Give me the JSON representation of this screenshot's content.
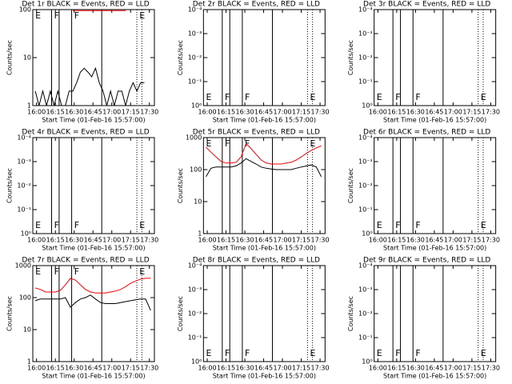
{
  "chart_data": [
    {
      "type": "line",
      "title": "Det 1r BLACK = Events, RED = LLD",
      "xlabel": "Start Time (01-Feb-16 15:57:00)",
      "ylabel": "Counts/sec",
      "x": [
        2,
        5,
        8,
        11,
        14,
        17,
        20,
        23,
        26,
        29,
        32,
        35,
        38,
        41,
        44,
        47,
        50,
        53,
        56,
        59,
        62,
        65,
        68,
        71,
        74,
        77,
        80,
        83,
        86,
        89
      ],
      "series": [
        {
          "color": "#000000",
          "values": [
            2,
            1,
            2,
            1,
            2,
            1,
            2,
            1,
            1,
            2,
            2,
            3,
            5,
            6,
            5,
            4,
            6,
            3,
            2,
            1,
            2,
            1,
            2,
            2,
            1,
            2,
            3,
            2,
            3,
            3
          ]
        },
        {
          "color": "#ff0000",
          "values": [
            null,
            null,
            null,
            null,
            null,
            null,
            null,
            null,
            null,
            null,
            95,
            95,
            95,
            95,
            95,
            95,
            95,
            95,
            95,
            95,
            95,
            95,
            95,
            95,
            95,
            null,
            null,
            null,
            null,
            null
          ]
        }
      ],
      "xlim": [
        0,
        97
      ],
      "xticks": [
        {
          "value": 3,
          "label": "16:00"
        },
        {
          "value": 18,
          "label": "16:15"
        },
        {
          "value": 33,
          "label": "16:30"
        },
        {
          "value": 48,
          "label": "16:45"
        },
        {
          "value": 63,
          "label": "17:00"
        },
        {
          "value": 78,
          "label": "17:15"
        },
        {
          "value": 93,
          "label": "17:30"
        }
      ],
      "ylim": [
        1,
        100
      ],
      "yticks": [
        1,
        10,
        100
      ],
      "log_y": true,
      "vlines": {
        "solid": [
          15,
          21,
          31,
          55
        ],
        "dotted": [
          83,
          87
        ]
      },
      "annotations": [
        {
          "text": "E",
          "x": 2
        },
        {
          "text": "F",
          "x": 17
        },
        {
          "text": "F",
          "x": 33
        },
        {
          "text": "E",
          "x": 85
        }
      ],
      "annotation_position": "top"
    },
    {
      "type": "line",
      "title": "Det 2r BLACK = Events, RED = LLD",
      "xlabel": "Start Time (01-Feb-16 15:57:00)",
      "ylabel": "Counts/sec",
      "series": [],
      "xlim": [
        0,
        97
      ],
      "xticks": [
        {
          "value": 3,
          "label": "16:00"
        },
        {
          "value": 18,
          "label": "16:15"
        },
        {
          "value": 33,
          "label": "16:30"
        },
        {
          "value": 48,
          "label": "16:45"
        },
        {
          "value": 63,
          "label": "17:00"
        },
        {
          "value": 78,
          "label": "17:15"
        },
        {
          "value": 93,
          "label": "17:30"
        }
      ],
      "ylim": [
        1,
        0.0001
      ],
      "yticks": [
        {
          "value": 1,
          "label": "10⁰"
        },
        {
          "value": 0.1,
          "label": "10⁻¹"
        },
        {
          "value": 0.01,
          "label": "10⁻²"
        },
        {
          "value": 0.001,
          "label": "10⁻³"
        },
        {
          "value": 0.0001,
          "label": "10⁻⁴"
        }
      ],
      "log_y": true,
      "vlines": {
        "solid": [
          15,
          21,
          31,
          55
        ],
        "dotted": [
          83,
          87
        ]
      },
      "annotations": [
        {
          "text": "E",
          "x": 2
        },
        {
          "text": "F",
          "x": 17
        },
        {
          "text": "F",
          "x": 33
        },
        {
          "text": "E",
          "x": 85
        }
      ],
      "annotation_position": "bottom"
    },
    {
      "type": "line",
      "title": "Det 3r BLACK = Events, RED = LLD",
      "xlabel": "Start Time (01-Feb-16 15:57:00)",
      "ylabel": "Counts/sec",
      "series": [],
      "xlim": [
        0,
        97
      ],
      "xticks": [
        {
          "value": 3,
          "label": "16:00"
        },
        {
          "value": 18,
          "label": "16:15"
        },
        {
          "value": 33,
          "label": "16:30"
        },
        {
          "value": 48,
          "label": "16:45"
        },
        {
          "value": 63,
          "label": "17:00"
        },
        {
          "value": 78,
          "label": "17:15"
        },
        {
          "value": 93,
          "label": "17:30"
        }
      ],
      "ylim": [
        1,
        0.0001
      ],
      "yticks": [
        {
          "value": 1,
          "label": "10⁰"
        },
        {
          "value": 0.1,
          "label": "10⁻¹"
        },
        {
          "value": 0.01,
          "label": "10⁻²"
        },
        {
          "value": 0.001,
          "label": "10⁻³"
        },
        {
          "value": 0.0001,
          "label": "10⁻⁴"
        }
      ],
      "log_y": true,
      "vlines": {
        "solid": [
          15,
          21,
          31,
          55
        ],
        "dotted": [
          83,
          87
        ]
      },
      "annotations": [
        {
          "text": "E",
          "x": 2
        },
        {
          "text": "F",
          "x": 17
        },
        {
          "text": "F",
          "x": 33
        },
        {
          "text": "E",
          "x": 85
        }
      ],
      "annotation_position": "bottom"
    },
    {
      "type": "line",
      "title": "Det 4r BLACK = Events, RED = LLD",
      "xlabel": "Start Time (01-Feb-16 15:57:00)",
      "ylabel": "Counts/sec",
      "series": [],
      "xlim": [
        0,
        97
      ],
      "xticks": [
        {
          "value": 3,
          "label": "16:00"
        },
        {
          "value": 18,
          "label": "16:15"
        },
        {
          "value": 33,
          "label": "16:30"
        },
        {
          "value": 48,
          "label": "16:45"
        },
        {
          "value": 63,
          "label": "17:00"
        },
        {
          "value": 78,
          "label": "17:15"
        },
        {
          "value": 93,
          "label": "17:30"
        }
      ],
      "ylim": [
        1,
        0.0001
      ],
      "yticks": [
        {
          "value": 1,
          "label": "10⁰"
        },
        {
          "value": 0.1,
          "label": "10⁻¹"
        },
        {
          "value": 0.01,
          "label": "10⁻²"
        },
        {
          "value": 0.001,
          "label": "10⁻³"
        },
        {
          "value": 0.0001,
          "label": "10⁻⁴"
        }
      ],
      "log_y": true,
      "vlines": {
        "solid": [
          15,
          21,
          31,
          55
        ],
        "dotted": [
          83,
          87
        ]
      },
      "annotations": [
        {
          "text": "E",
          "x": 2
        },
        {
          "text": "F",
          "x": 17
        },
        {
          "text": "F",
          "x": 33
        },
        {
          "text": "E",
          "x": 85
        }
      ],
      "annotation_position": "bottom"
    },
    {
      "type": "line",
      "title": "Det 5r BLACK = Events, RED = LLD",
      "xlabel": "Start Time (01-Feb-16 15:57:00)",
      "ylabel": "Counts/sec",
      "x": [
        2,
        6,
        10,
        14,
        18,
        22,
        26,
        30,
        34,
        38,
        42,
        46,
        50,
        54,
        58,
        62,
        66,
        70,
        74,
        78,
        82,
        86,
        90,
        94
      ],
      "series": [
        {
          "color": "#000000",
          "values": [
            60,
            110,
            120,
            120,
            120,
            120,
            130,
            160,
            220,
            180,
            150,
            120,
            110,
            105,
            100,
            100,
            100,
            100,
            110,
            120,
            130,
            140,
            120,
            60
          ]
        },
        {
          "color": "#ff0000",
          "values": [
            500,
            350,
            250,
            180,
            160,
            160,
            170,
            250,
            650,
            450,
            300,
            200,
            160,
            150,
            150,
            150,
            160,
            170,
            200,
            250,
            320,
            400,
            480,
            550
          ]
        }
      ],
      "xlim": [
        0,
        97
      ],
      "xticks": [
        {
          "value": 3,
          "label": "16:00"
        },
        {
          "value": 18,
          "label": "16:15"
        },
        {
          "value": 33,
          "label": "16:30"
        },
        {
          "value": 48,
          "label": "16:45"
        },
        {
          "value": 63,
          "label": "17:00"
        },
        {
          "value": 78,
          "label": "17:15"
        },
        {
          "value": 93,
          "label": "17:30"
        }
      ],
      "ylim": [
        1,
        1000
      ],
      "yticks": [
        1,
        10,
        100,
        1000
      ],
      "log_y": true,
      "vlines": {
        "solid": [
          15,
          21,
          31,
          55
        ],
        "dotted": [
          83,
          87
        ]
      },
      "annotations": [
        {
          "text": "E",
          "x": 2
        },
        {
          "text": "F",
          "x": 17
        },
        {
          "text": "F",
          "x": 33
        },
        {
          "text": "E",
          "x": 85
        }
      ],
      "annotation_position": "top"
    },
    {
      "type": "line",
      "title": "Det 6r BLACK = Events, RED = LLD",
      "xlabel": "Start Time (01-Feb-16 15:57:00)",
      "ylabel": "Counts/sec",
      "series": [],
      "xlim": [
        0,
        97
      ],
      "xticks": [
        {
          "value": 3,
          "label": "16:00"
        },
        {
          "value": 18,
          "label": "16:15"
        },
        {
          "value": 33,
          "label": "16:30"
        },
        {
          "value": 48,
          "label": "16:45"
        },
        {
          "value": 63,
          "label": "17:00"
        },
        {
          "value": 78,
          "label": "17:15"
        },
        {
          "value": 93,
          "label": "17:30"
        }
      ],
      "ylim": [
        1,
        0.0001
      ],
      "yticks": [
        {
          "value": 1,
          "label": "10⁰"
        },
        {
          "value": 0.1,
          "label": "10⁻¹"
        },
        {
          "value": 0.01,
          "label": "10⁻²"
        },
        {
          "value": 0.001,
          "label": "10⁻³"
        },
        {
          "value": 0.0001,
          "label": "10⁻⁴"
        }
      ],
      "log_y": true,
      "vlines": {
        "solid": [
          15,
          21,
          31,
          55
        ],
        "dotted": [
          83,
          87
        ]
      },
      "annotations": [
        {
          "text": "E",
          "x": 2
        },
        {
          "text": "F",
          "x": 17
        },
        {
          "text": "F",
          "x": 33
        },
        {
          "text": "E",
          "x": 85
        }
      ],
      "annotation_position": "bottom"
    },
    {
      "type": "line",
      "title": "Det 7r BLACK = Events, RED = LLD",
      "xlabel": "Start Time (01-Feb-16 15:57:00)",
      "ylabel": "Counts/sec",
      "x": [
        2,
        6,
        10,
        14,
        18,
        22,
        26,
        30,
        34,
        38,
        42,
        46,
        50,
        54,
        58,
        62,
        66,
        70,
        74,
        78,
        82,
        86,
        90,
        94
      ],
      "series": [
        {
          "color": "#000000",
          "values": [
            80,
            90,
            90,
            90,
            90,
            90,
            100,
            50,
            70,
            90,
            100,
            120,
            90,
            70,
            65,
            65,
            65,
            70,
            75,
            80,
            85,
            90,
            90,
            40
          ]
        },
        {
          "color": "#ff0000",
          "values": [
            200,
            180,
            150,
            150,
            150,
            170,
            250,
            400,
            350,
            250,
            180,
            150,
            140,
            140,
            140,
            150,
            160,
            180,
            220,
            280,
            330,
            380,
            400,
            400
          ]
        }
      ],
      "xlim": [
        0,
        97
      ],
      "xticks": [
        {
          "value": 3,
          "label": "16:00"
        },
        {
          "value": 18,
          "label": "16:15"
        },
        {
          "value": 33,
          "label": "16:30"
        },
        {
          "value": 48,
          "label": "16:45"
        },
        {
          "value": 63,
          "label": "17:00"
        },
        {
          "value": 78,
          "label": "17:15"
        },
        {
          "value": 93,
          "label": "17:30"
        }
      ],
      "ylim": [
        1,
        1000
      ],
      "yticks": [
        1,
        10,
        100,
        1000
      ],
      "log_y": true,
      "vlines": {
        "solid": [
          15,
          21,
          31,
          55
        ],
        "dotted": [
          83,
          87
        ]
      },
      "annotations": [
        {
          "text": "E",
          "x": 2
        },
        {
          "text": "F",
          "x": 17
        },
        {
          "text": "F",
          "x": 33
        },
        {
          "text": "E",
          "x": 85
        }
      ],
      "annotation_position": "top"
    },
    {
      "type": "line",
      "title": "Det 8r BLACK = Events, RED = LLD",
      "xlabel": "Start Time (01-Feb-16 15:57:00)",
      "ylabel": "Counts/sec",
      "series": [],
      "xlim": [
        0,
        97
      ],
      "xticks": [
        {
          "value": 3,
          "label": "16:00"
        },
        {
          "value": 18,
          "label": "16:15"
        },
        {
          "value": 33,
          "label": "16:30"
        },
        {
          "value": 48,
          "label": "16:45"
        },
        {
          "value": 63,
          "label": "17:00"
        },
        {
          "value": 78,
          "label": "17:15"
        },
        {
          "value": 93,
          "label": "17:30"
        }
      ],
      "ylim": [
        1,
        0.0001
      ],
      "yticks": [
        {
          "value": 1,
          "label": "10⁰"
        },
        {
          "value": 0.1,
          "label": "10⁻¹"
        },
        {
          "value": 0.01,
          "label": "10⁻²"
        },
        {
          "value": 0.001,
          "label": "10⁻³"
        },
        {
          "value": 0.0001,
          "label": "10⁻⁴"
        }
      ],
      "log_y": true,
      "vlines": {
        "solid": [
          15,
          21,
          31,
          55
        ],
        "dotted": [
          83,
          87
        ]
      },
      "annotations": [
        {
          "text": "E",
          "x": 2
        },
        {
          "text": "F",
          "x": 17
        },
        {
          "text": "F",
          "x": 33
        },
        {
          "text": "E",
          "x": 85
        }
      ],
      "annotation_position": "bottom"
    },
    {
      "type": "line",
      "title": "Det 9r BLACK = Events, RED = LLD",
      "xlabel": "Start Time (01-Feb-16 15:57:00)",
      "ylabel": "Counts/sec",
      "series": [],
      "xlim": [
        0,
        97
      ],
      "xticks": [
        {
          "value": 3,
          "label": "16:00"
        },
        {
          "value": 18,
          "label": "16:15"
        },
        {
          "value": 33,
          "label": "16:30"
        },
        {
          "value": 48,
          "label": "16:45"
        },
        {
          "value": 63,
          "label": "17:00"
        },
        {
          "value": 78,
          "label": "17:15"
        },
        {
          "value": 93,
          "label": "17:30"
        }
      ],
      "ylim": [
        1,
        0.0001
      ],
      "yticks": [
        {
          "value": 1,
          "label": "10⁰"
        },
        {
          "value": 0.1,
          "label": "10⁻¹"
        },
        {
          "value": 0.01,
          "label": "10⁻²"
        },
        {
          "value": 0.001,
          "label": "10⁻³"
        },
        {
          "value": 0.0001,
          "label": "10⁻⁴"
        }
      ],
      "log_y": true,
      "vlines": {
        "solid": [
          15,
          21,
          31,
          55
        ],
        "dotted": [
          83,
          87
        ]
      },
      "annotations": [
        {
          "text": "E",
          "x": 2
        },
        {
          "text": "F",
          "x": 17
        },
        {
          "text": "F",
          "x": 33
        },
        {
          "text": "E",
          "x": 85
        }
      ],
      "annotation_position": "bottom"
    }
  ]
}
